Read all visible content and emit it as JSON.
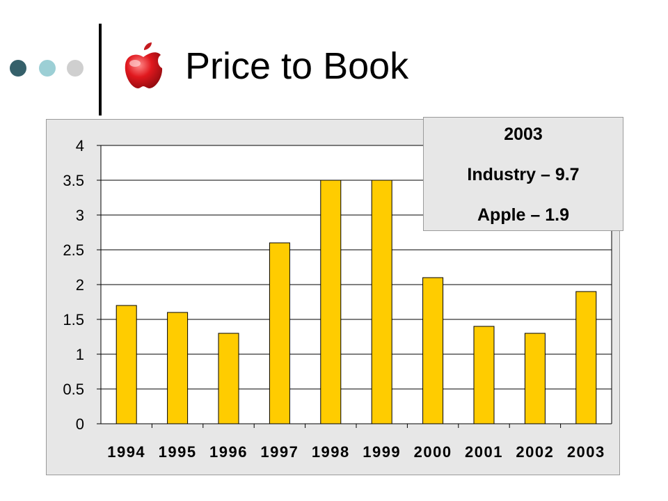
{
  "slide": {
    "title": "Price to Book",
    "bullet_colors": [
      "#35606a",
      "#9ccfd5",
      "#cfcfcf"
    ],
    "logo_icon": "apple-logo-icon"
  },
  "callout": {
    "year": "2003",
    "industry": "Industry – 9.7",
    "apple": "Apple – 1.9"
  },
  "chart_data": {
    "type": "bar",
    "title": "",
    "xlabel": "",
    "ylabel": "",
    "categories": [
      "1994",
      "1995",
      "1996",
      "1997",
      "1998",
      "1999",
      "2000",
      "2001",
      "2002",
      "2003"
    ],
    "values": [
      1.7,
      1.6,
      1.3,
      2.6,
      3.5,
      3.5,
      2.1,
      1.4,
      1.3,
      1.9
    ],
    "ylim": [
      0,
      4
    ],
    "yticks": [
      "0",
      "0.5",
      "1",
      "1.5",
      "2",
      "2.5",
      "3",
      "3.5",
      "4"
    ],
    "grid": true,
    "legend": "none",
    "bar_color": "#ffcc00"
  }
}
